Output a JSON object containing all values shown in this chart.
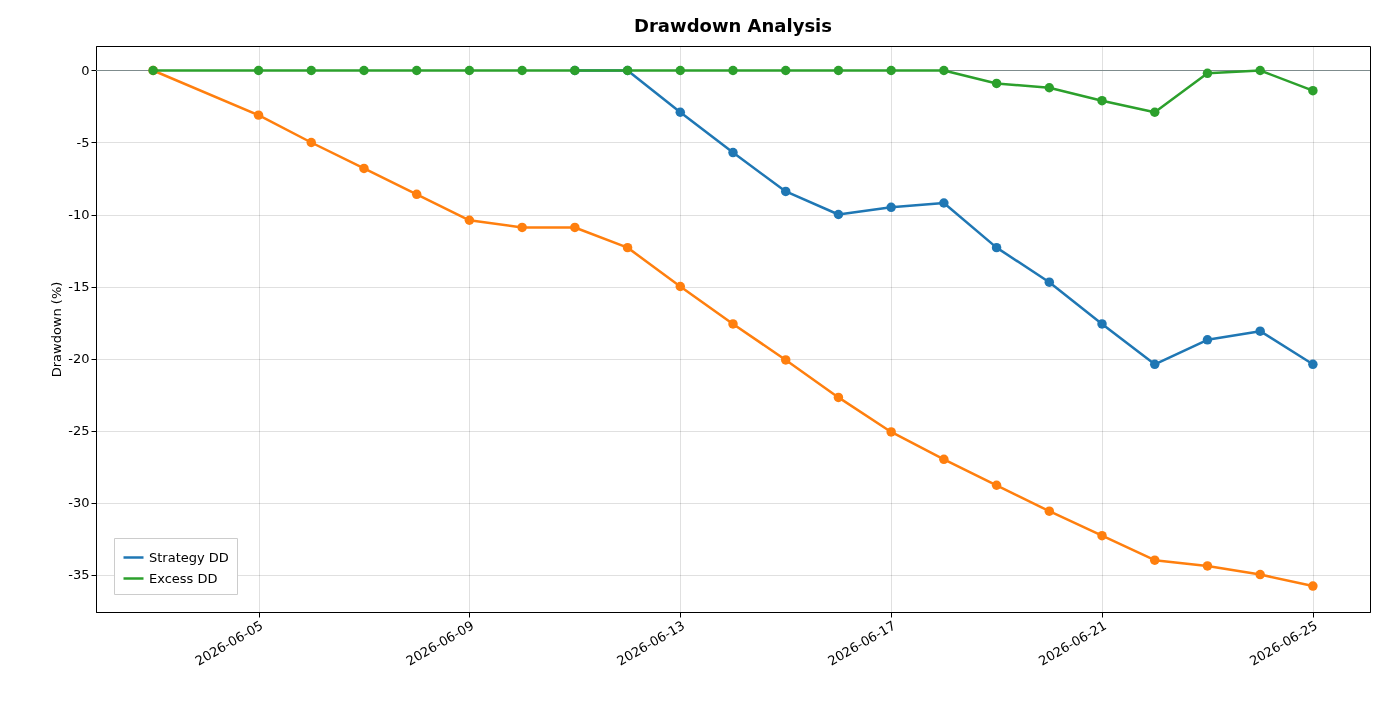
{
  "chart_data": {
    "type": "line",
    "title": "Drawdown Analysis",
    "ylabel": "Drawdown (%)",
    "x": [
      "2026-06-03",
      "2026-06-05",
      "2026-06-06",
      "2026-06-07",
      "2026-06-08",
      "2026-06-09",
      "2026-06-10",
      "2026-06-11",
      "2026-06-12",
      "2026-06-13",
      "2026-06-14",
      "2026-06-15",
      "2026-06-16",
      "2026-06-17",
      "2026-06-18",
      "2026-06-19",
      "2026-06-20",
      "2026-06-21",
      "2026-06-22",
      "2026-06-23",
      "2026-06-24",
      "2026-06-25"
    ],
    "series": [
      {
        "name": "Strategy DD",
        "color": "#1f77b4",
        "values": [
          null,
          null,
          null,
          null,
          null,
          null,
          null,
          0,
          0,
          -2.9,
          -5.7,
          -8.4,
          -10.0,
          -9.5,
          -9.2,
          -12.3,
          -14.7,
          -17.6,
          -20.4,
          -18.7,
          -18.1,
          -20.4
        ]
      },
      {
        "color": "#ff7f0e",
        "values": [
          0,
          -3.1,
          -5.0,
          -6.8,
          -8.6,
          -10.4,
          -10.9,
          -10.9,
          -12.3,
          -15.0,
          -17.6,
          -20.1,
          -22.7,
          -25.1,
          -27.0,
          -28.8,
          -30.6,
          -32.3,
          -34.0,
          -34.4,
          -35.0,
          -35.8
        ]
      },
      {
        "name": "Excess DD",
        "color": "#2ca02c",
        "values": [
          0,
          0,
          0,
          0,
          0,
          0,
          0,
          0,
          0,
          0,
          0,
          0,
          0,
          0,
          0,
          -0.9,
          -1.2,
          -2.1,
          -2.9,
          -0.2,
          0,
          -1.4
        ]
      }
    ],
    "xlim": [
      "2026-06-01T22:00",
      "2026-06-26T02:00"
    ],
    "xticks": [
      "2026-06-05",
      "2026-06-09",
      "2026-06-13",
      "2026-06-17",
      "2026-06-21",
      "2026-06-25"
    ],
    "ylim": [
      -37.6,
      1.7
    ],
    "yticks": [
      -35,
      -30,
      -25,
      -20,
      -15,
      -10,
      -5,
      0
    ],
    "ref_lines": [
      {
        "axis": "y",
        "value": 0,
        "color": "#7f8c8d"
      }
    ],
    "grid": true,
    "legend": "bottom left",
    "marker": "circle",
    "line_style": "solid"
  }
}
